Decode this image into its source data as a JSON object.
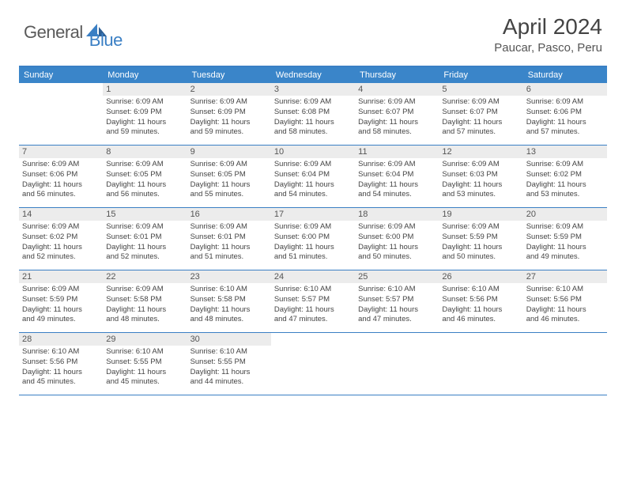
{
  "brand": {
    "text1": "General",
    "text2": "Blue"
  },
  "title": "April 2024",
  "location": "Paucar, Pasco, Peru",
  "weekdays": [
    "Sunday",
    "Monday",
    "Tuesday",
    "Wednesday",
    "Thursday",
    "Friday",
    "Saturday"
  ],
  "colors": {
    "header_bg": "#3a85c9",
    "accent": "#3a7fc4",
    "daynum_bg": "#ececec",
    "text": "#444444"
  },
  "start_offset": 1,
  "days": [
    {
      "n": 1,
      "rise": "6:09 AM",
      "set": "6:09 PM",
      "hrs": 11,
      "min": 59
    },
    {
      "n": 2,
      "rise": "6:09 AM",
      "set": "6:09 PM",
      "hrs": 11,
      "min": 59
    },
    {
      "n": 3,
      "rise": "6:09 AM",
      "set": "6:08 PM",
      "hrs": 11,
      "min": 58
    },
    {
      "n": 4,
      "rise": "6:09 AM",
      "set": "6:07 PM",
      "hrs": 11,
      "min": 58
    },
    {
      "n": 5,
      "rise": "6:09 AM",
      "set": "6:07 PM",
      "hrs": 11,
      "min": 57
    },
    {
      "n": 6,
      "rise": "6:09 AM",
      "set": "6:06 PM",
      "hrs": 11,
      "min": 57
    },
    {
      "n": 7,
      "rise": "6:09 AM",
      "set": "6:06 PM",
      "hrs": 11,
      "min": 56
    },
    {
      "n": 8,
      "rise": "6:09 AM",
      "set": "6:05 PM",
      "hrs": 11,
      "min": 56
    },
    {
      "n": 9,
      "rise": "6:09 AM",
      "set": "6:05 PM",
      "hrs": 11,
      "min": 55
    },
    {
      "n": 10,
      "rise": "6:09 AM",
      "set": "6:04 PM",
      "hrs": 11,
      "min": 54
    },
    {
      "n": 11,
      "rise": "6:09 AM",
      "set": "6:04 PM",
      "hrs": 11,
      "min": 54
    },
    {
      "n": 12,
      "rise": "6:09 AM",
      "set": "6:03 PM",
      "hrs": 11,
      "min": 53
    },
    {
      "n": 13,
      "rise": "6:09 AM",
      "set": "6:02 PM",
      "hrs": 11,
      "min": 53
    },
    {
      "n": 14,
      "rise": "6:09 AM",
      "set": "6:02 PM",
      "hrs": 11,
      "min": 52
    },
    {
      "n": 15,
      "rise": "6:09 AM",
      "set": "6:01 PM",
      "hrs": 11,
      "min": 52
    },
    {
      "n": 16,
      "rise": "6:09 AM",
      "set": "6:01 PM",
      "hrs": 11,
      "min": 51
    },
    {
      "n": 17,
      "rise": "6:09 AM",
      "set": "6:00 PM",
      "hrs": 11,
      "min": 51
    },
    {
      "n": 18,
      "rise": "6:09 AM",
      "set": "6:00 PM",
      "hrs": 11,
      "min": 50
    },
    {
      "n": 19,
      "rise": "6:09 AM",
      "set": "5:59 PM",
      "hrs": 11,
      "min": 50
    },
    {
      "n": 20,
      "rise": "6:09 AM",
      "set": "5:59 PM",
      "hrs": 11,
      "min": 49
    },
    {
      "n": 21,
      "rise": "6:09 AM",
      "set": "5:59 PM",
      "hrs": 11,
      "min": 49
    },
    {
      "n": 22,
      "rise": "6:09 AM",
      "set": "5:58 PM",
      "hrs": 11,
      "min": 48
    },
    {
      "n": 23,
      "rise": "6:10 AM",
      "set": "5:58 PM",
      "hrs": 11,
      "min": 48
    },
    {
      "n": 24,
      "rise": "6:10 AM",
      "set": "5:57 PM",
      "hrs": 11,
      "min": 47
    },
    {
      "n": 25,
      "rise": "6:10 AM",
      "set": "5:57 PM",
      "hrs": 11,
      "min": 47
    },
    {
      "n": 26,
      "rise": "6:10 AM",
      "set": "5:56 PM",
      "hrs": 11,
      "min": 46
    },
    {
      "n": 27,
      "rise": "6:10 AM",
      "set": "5:56 PM",
      "hrs": 11,
      "min": 46
    },
    {
      "n": 28,
      "rise": "6:10 AM",
      "set": "5:56 PM",
      "hrs": 11,
      "min": 45
    },
    {
      "n": 29,
      "rise": "6:10 AM",
      "set": "5:55 PM",
      "hrs": 11,
      "min": 45
    },
    {
      "n": 30,
      "rise": "6:10 AM",
      "set": "5:55 PM",
      "hrs": 11,
      "min": 44
    }
  ]
}
